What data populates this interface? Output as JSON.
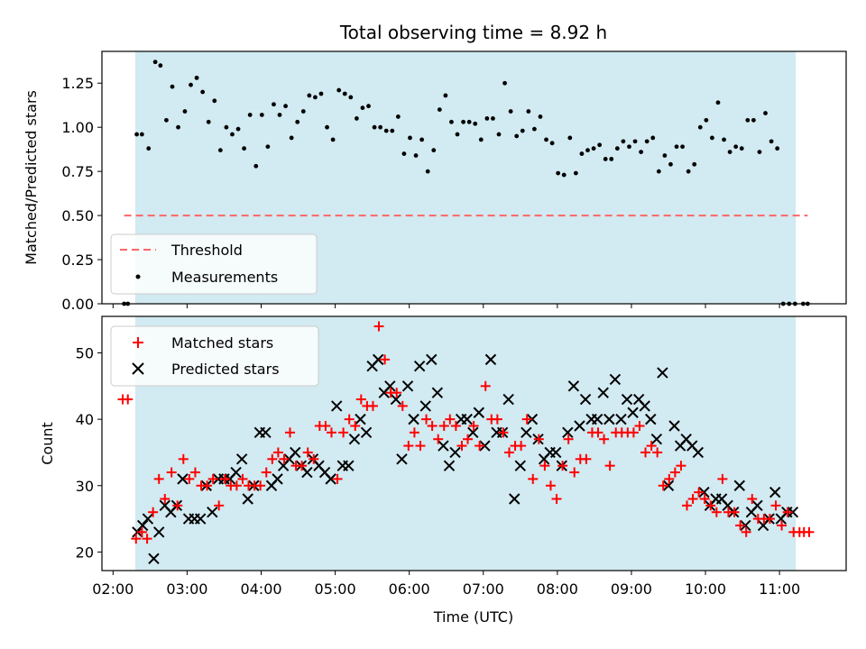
{
  "chart_data": [
    {
      "type": "scatter",
      "title": "Total observing time = 8.92 h",
      "xlabel": "",
      "ylabel": "Matched/Predicted stars",
      "ylim": [
        0,
        1.43
      ],
      "yticks": [
        0.0,
        0.25,
        0.5,
        0.75,
        1.0,
        1.25
      ],
      "ytick_labels": [
        "0.00",
        "0.25",
        "0.50",
        "0.75",
        "1.00",
        "1.25"
      ],
      "shaded_span": {
        "start_hours": 2.3,
        "end_hours": 11.22,
        "color": "#add8e6"
      },
      "legend_position": "lower-left",
      "series": [
        {
          "name": "Threshold",
          "kind": "line",
          "style": "dashed",
          "color": "#ff6666",
          "x": [
            2.15,
            11.38
          ],
          "y": [
            0.5,
            0.5
          ]
        },
        {
          "name": "Measurements",
          "kind": "scatter",
          "marker": "dot",
          "color": "#000000",
          "x": [
            2.15,
            2.2,
            2.32,
            2.39,
            2.48,
            2.57,
            2.64,
            2.72,
            2.8,
            2.88,
            2.97,
            3.05,
            3.13,
            3.21,
            3.29,
            3.37,
            3.45,
            3.53,
            3.61,
            3.69,
            3.77,
            3.85,
            3.93,
            4.01,
            4.09,
            4.17,
            4.25,
            4.33,
            4.41,
            4.49,
            4.57,
            4.65,
            4.73,
            4.81,
            4.89,
            4.97,
            5.05,
            5.13,
            5.21,
            5.29,
            5.37,
            5.45,
            5.53,
            5.61,
            5.69,
            5.77,
            5.85,
            5.93,
            6.01,
            6.09,
            6.17,
            6.25,
            6.33,
            6.41,
            6.49,
            6.57,
            6.65,
            6.73,
            6.81,
            6.89,
            6.97,
            7.05,
            7.13,
            7.21,
            7.29,
            7.37,
            7.45,
            7.53,
            7.61,
            7.69,
            7.77,
            7.85,
            7.93,
            8.01,
            8.09,
            8.17,
            8.25,
            8.33,
            8.41,
            8.49,
            8.57,
            8.65,
            8.73,
            8.81,
            8.89,
            8.97,
            9.05,
            9.13,
            9.21,
            9.29,
            9.37,
            9.45,
            9.53,
            9.61,
            9.69,
            9.77,
            9.85,
            9.93,
            10.01,
            10.09,
            10.17,
            10.25,
            10.33,
            10.41,
            10.49,
            10.57,
            10.65,
            10.73,
            10.81,
            10.89,
            10.97,
            11.05,
            11.13,
            11.21,
            11.32,
            11.38
          ],
          "y": [
            0.0,
            0.0,
            0.96,
            0.96,
            0.88,
            1.37,
            1.35,
            1.04,
            1.23,
            1.0,
            1.09,
            1.24,
            1.28,
            1.2,
            1.03,
            1.15,
            0.87,
            1.0,
            0.96,
            0.99,
            0.88,
            1.07,
            0.78,
            1.07,
            0.89,
            1.13,
            1.07,
            1.12,
            0.94,
            1.03,
            1.09,
            1.18,
            1.17,
            1.19,
            1.0,
            0.93,
            1.21,
            1.19,
            1.17,
            1.05,
            1.11,
            1.12,
            1.0,
            1.0,
            0.98,
            0.98,
            1.06,
            0.85,
            0.94,
            0.84,
            0.93,
            0.75,
            0.87,
            1.1,
            1.18,
            1.03,
            0.96,
            1.03,
            1.03,
            1.02,
            0.93,
            1.05,
            1.05,
            0.96,
            1.25,
            1.09,
            0.95,
            0.98,
            1.09,
            0.99,
            1.06,
            0.93,
            0.91,
            0.74,
            0.73,
            0.94,
            0.74,
            0.85,
            0.87,
            0.88,
            0.9,
            0.82,
            0.82,
            0.88,
            0.92,
            0.89,
            0.92,
            0.86,
            0.92,
            0.94,
            0.75,
            0.84,
            0.79,
            0.89,
            0.89,
            0.75,
            0.79,
            1.0,
            1.04,
            0.94,
            1.14,
            0.93,
            0.86,
            0.89,
            0.88,
            1.04,
            1.04,
            0.86,
            1.08,
            0.92,
            0.88,
            0.0,
            0.0,
            0.0,
            0.0,
            0.0
          ]
        }
      ]
    },
    {
      "type": "scatter",
      "title": "",
      "xlabel": "Time (UTC)",
      "ylabel": "Count",
      "ylim": [
        17.2,
        55.5
      ],
      "yticks": [
        20,
        30,
        40,
        50
      ],
      "ytick_labels": [
        "20",
        "30",
        "40",
        "50"
      ],
      "xlim_hours": [
        1.85,
        11.9
      ],
      "xticks_hours": [
        2,
        3,
        4,
        5,
        6,
        7,
        8,
        9,
        10,
        11
      ],
      "xtick_labels": [
        "02:00",
        "03:00",
        "04:00",
        "05:00",
        "06:00",
        "07:00",
        "08:00",
        "09:00",
        "10:00",
        "11:00"
      ],
      "shaded_span": {
        "start_hours": 2.3,
        "end_hours": 11.22,
        "color": "#add8e6"
      },
      "legend_position": "upper-left",
      "series": [
        {
          "name": "Matched stars",
          "marker": "plus",
          "color": "#ff0000",
          "x": [
            2.13,
            2.2,
            2.31,
            2.39,
            2.46,
            2.54,
            2.62,
            2.7,
            2.79,
            2.87,
            2.95,
            3.03,
            3.11,
            3.19,
            3.27,
            3.35,
            3.43,
            3.51,
            3.59,
            3.67,
            3.75,
            3.83,
            3.91,
            3.99,
            4.07,
            4.15,
            4.23,
            4.31,
            4.39,
            4.47,
            4.55,
            4.63,
            4.71,
            4.79,
            4.87,
            4.95,
            5.03,
            5.11,
            5.19,
            5.27,
            5.35,
            5.43,
            5.51,
            5.59,
            5.67,
            5.75,
            5.83,
            5.91,
            5.99,
            6.07,
            6.15,
            6.23,
            6.31,
            6.39,
            6.47,
            6.55,
            6.63,
            6.71,
            6.79,
            6.87,
            6.95,
            7.03,
            7.11,
            7.19,
            7.27,
            7.35,
            7.43,
            7.51,
            7.59,
            7.67,
            7.75,
            7.83,
            7.91,
            7.99,
            8.07,
            8.15,
            8.23,
            8.31,
            8.39,
            8.47,
            8.55,
            8.63,
            8.71,
            8.79,
            8.87,
            8.95,
            9.03,
            9.11,
            9.19,
            9.27,
            9.35,
            9.43,
            9.51,
            9.59,
            9.67,
            9.75,
            9.83,
            9.91,
            9.99,
            10.07,
            10.15,
            10.23,
            10.31,
            10.39,
            10.47,
            10.55,
            10.63,
            10.71,
            10.79,
            10.87,
            10.95,
            11.03,
            11.11,
            11.19,
            11.27,
            11.33,
            11.4
          ],
          "y": [
            43,
            43,
            22,
            23,
            22,
            26,
            31,
            28,
            32,
            27,
            34,
            31,
            32,
            30,
            30,
            31,
            27,
            31,
            30,
            30,
            31,
            30,
            30,
            30,
            32,
            34,
            35,
            34,
            38,
            33,
            33,
            35,
            34,
            39,
            39,
            38,
            31,
            38,
            40,
            39,
            43,
            42,
            42,
            54,
            49,
            44,
            44,
            42,
            36,
            38,
            36,
            40,
            39,
            37,
            39,
            40,
            39,
            36,
            37,
            39,
            36,
            45,
            40,
            40,
            38,
            35,
            36,
            36,
            40,
            31,
            37,
            33,
            30,
            28,
            33,
            37,
            32,
            34,
            34,
            38,
            38,
            37,
            33,
            38,
            38,
            38,
            38,
            39,
            35,
            36,
            35,
            30,
            31,
            32,
            33,
            27,
            28,
            29,
            28,
            27,
            26,
            31,
            26,
            26,
            24,
            23,
            28,
            25,
            25,
            25,
            27,
            24,
            26,
            23,
            23,
            23,
            23
          ]
        },
        {
          "name": "Predicted stars",
          "marker": "x",
          "color": "#000000",
          "x": [
            2.33,
            2.4,
            2.47,
            2.55,
            2.62,
            2.7,
            2.78,
            2.86,
            2.94,
            3.02,
            3.1,
            3.18,
            3.26,
            3.34,
            3.42,
            3.5,
            3.58,
            3.66,
            3.74,
            3.82,
            3.9,
            3.98,
            4.06,
            4.14,
            4.22,
            4.3,
            4.38,
            4.46,
            4.54,
            4.62,
            4.7,
            4.78,
            4.86,
            4.94,
            5.02,
            5.1,
            5.18,
            5.26,
            5.34,
            5.42,
            5.5,
            5.58,
            5.66,
            5.74,
            5.82,
            5.9,
            5.98,
            6.06,
            6.14,
            6.22,
            6.3,
            6.38,
            6.46,
            6.54,
            6.62,
            6.7,
            6.78,
            6.86,
            6.94,
            7.02,
            7.1,
            7.18,
            7.26,
            7.34,
            7.42,
            7.5,
            7.58,
            7.66,
            7.74,
            7.82,
            7.9,
            7.98,
            8.06,
            8.14,
            8.22,
            8.3,
            8.38,
            8.46,
            8.54,
            8.62,
            8.7,
            8.78,
            8.86,
            8.94,
            9.02,
            9.1,
            9.18,
            9.26,
            9.34,
            9.42,
            9.5,
            9.58,
            9.66,
            9.74,
            9.82,
            9.9,
            9.98,
            10.06,
            10.14,
            10.22,
            10.3,
            10.38,
            10.46,
            10.54,
            10.62,
            10.7,
            10.78,
            10.86,
            10.94,
            11.02,
            11.1,
            11.18
          ],
          "y": [
            23,
            24,
            25,
            19,
            23,
            27,
            26,
            27,
            31,
            25,
            25,
            25,
            30,
            26,
            31,
            31,
            31,
            32,
            34,
            28,
            30,
            38,
            38,
            30,
            31,
            33,
            34,
            35,
            33,
            32,
            34,
            33,
            32,
            31,
            42,
            33,
            33,
            37,
            40,
            38,
            48,
            49,
            44,
            45,
            43,
            34,
            45,
            40,
            48,
            42,
            49,
            44,
            36,
            33,
            35,
            40,
            40,
            38,
            41,
            36,
            49,
            38,
            38,
            43,
            28,
            33,
            38,
            40,
            37,
            34,
            35,
            35,
            33,
            38,
            45,
            39,
            43,
            40,
            40,
            44,
            40,
            46,
            40,
            43,
            41,
            43,
            42,
            40,
            37,
            47,
            30,
            39,
            36,
            37,
            36,
            35,
            29,
            27,
            28,
            28,
            27,
            26,
            30,
            24,
            26,
            27,
            24,
            25,
            29,
            25,
            26,
            26
          ]
        }
      ]
    }
  ]
}
